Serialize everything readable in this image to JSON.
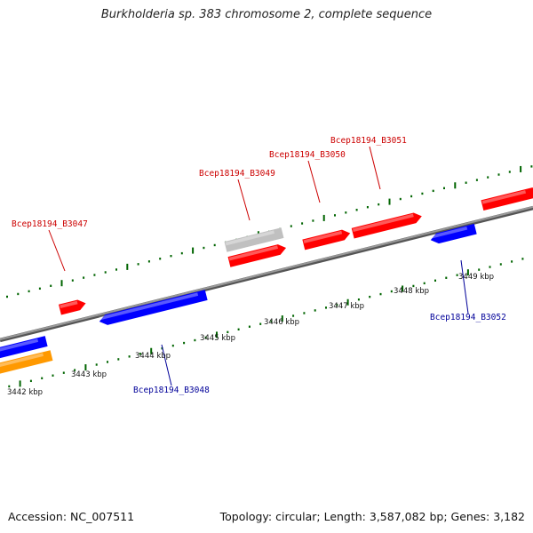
{
  "header": {
    "title": "Burkholderia sp. 383 chromosome 2, complete sequence"
  },
  "footer": {
    "accession": "Accession: NC_007511",
    "summary": "Topology: circular; Length: 3,587,082 bp; Genes: 3,182"
  },
  "colors": {
    "forward_gene": "#ff0000",
    "reverse_gene": "#0000ff",
    "pseudo_gene": "#c0c0c0",
    "other_feature": "#ff9900",
    "backbone": "#808080",
    "ticks": "#006400",
    "forward_label": "#cc0000",
    "reverse_label": "#000099"
  },
  "scale": {
    "unit": "kbp",
    "labels": [
      {
        "text": "3442 kbp"
      },
      {
        "text": "3443 kbp"
      },
      {
        "text": "3444 kbp"
      },
      {
        "text": "3445 kbp"
      },
      {
        "text": "3446 kbp"
      },
      {
        "text": "3447 kbp"
      },
      {
        "text": "3448 kbp"
      },
      {
        "text": "3449 kbp"
      }
    ]
  },
  "gene_labels": [
    {
      "text": "Bcep18194_B3047",
      "strand": "forward"
    },
    {
      "text": "Bcep18194_B3049",
      "strand": "forward"
    },
    {
      "text": "Bcep18194_B3050",
      "strand": "forward"
    },
    {
      "text": "Bcep18194_B3051",
      "strand": "forward"
    },
    {
      "text": "Bcep18194_B3048",
      "strand": "reverse"
    },
    {
      "text": "Bcep18194_B3052",
      "strand": "reverse"
    }
  ]
}
